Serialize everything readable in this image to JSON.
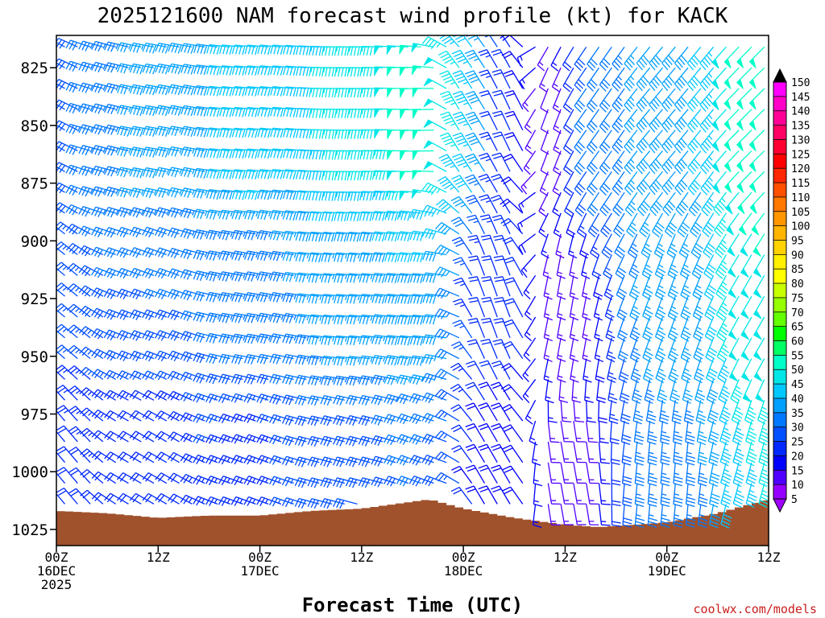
{
  "chart_data": {
    "type": "wind-barb-time-height",
    "title": "2025121600 NAM forecast wind profile (kt) for KACK",
    "xlabel": "Forecast Time (UTC)",
    "ylabel": "",
    "credit": "coolwx.com/models",
    "x_range_hours": [
      0,
      84
    ],
    "y_range_hpa": [
      811,
      1032
    ],
    "x_ticks": [
      {
        "hour": 0,
        "lines": [
          "00Z",
          "16DEC",
          "2025"
        ]
      },
      {
        "hour": 12,
        "lines": [
          "12Z"
        ]
      },
      {
        "hour": 24,
        "lines": [
          "00Z",
          "17DEC"
        ]
      },
      {
        "hour": 36,
        "lines": [
          "12Z"
        ]
      },
      {
        "hour": 48,
        "lines": [
          "00Z",
          "18DEC"
        ]
      },
      {
        "hour": 60,
        "lines": [
          "12Z"
        ]
      },
      {
        "hour": 72,
        "lines": [
          "00Z",
          "19DEC"
        ]
      },
      {
        "hour": 84,
        "lines": [
          "12Z"
        ]
      }
    ],
    "y_ticks": [
      "825",
      "850",
      "875",
      "900",
      "925",
      "950",
      "975",
      "1000",
      "1025"
    ],
    "colorbar": {
      "labels": [
        "150",
        "145",
        "140",
        "135",
        "130",
        "125",
        "120",
        "115",
        "110",
        "105",
        "100",
        "95",
        "90",
        "85",
        "80",
        "75",
        "70",
        "65",
        "60",
        "55",
        "50",
        "45",
        "40",
        "35",
        "30",
        "25",
        "20",
        "15",
        "10",
        "5"
      ],
      "colors": [
        "#ff00ff",
        "#ff00c8",
        "#ff0096",
        "#ff0064",
        "#ff0032",
        "#ff0000",
        "#ff2800",
        "#ff5000",
        "#ff7800",
        "#ff9600",
        "#ffb400",
        "#ffd200",
        "#fff000",
        "#ffff00",
        "#c8ff00",
        "#96ff00",
        "#64ff00",
        "#00ff00",
        "#00ff64",
        "#00ffc8",
        "#00e6e6",
        "#00c8ff",
        "#00a0ff",
        "#0078ff",
        "#0050ff",
        "#0028ff",
        "#0000ff",
        "#5000ff",
        "#9600ff"
      ]
    },
    "surface_pressure_hpa": [
      {
        "hour": 0,
        "p": 1017
      },
      {
        "hour": 6,
        "p": 1018
      },
      {
        "hour": 12,
        "p": 1020
      },
      {
        "hour": 18,
        "p": 1019
      },
      {
        "hour": 24,
        "p": 1019
      },
      {
        "hour": 30,
        "p": 1017
      },
      {
        "hour": 36,
        "p": 1016
      },
      {
        "hour": 40,
        "p": 1014
      },
      {
        "hour": 44,
        "p": 1012
      },
      {
        "hour": 48,
        "p": 1016
      },
      {
        "hour": 54,
        "p": 1020
      },
      {
        "hour": 60,
        "p": 1023
      },
      {
        "hour": 64,
        "p": 1024
      },
      {
        "hour": 72,
        "p": 1022
      },
      {
        "hour": 78,
        "p": 1018
      },
      {
        "hour": 84,
        "p": 1012
      }
    ],
    "wind_samples": [
      {
        "hour": 0,
        "p": 850,
        "dir_deg": 300,
        "speed_kt": 28
      },
      {
        "hour": 6,
        "p": 850,
        "dir_deg": 285,
        "speed_kt": 33
      },
      {
        "hour": 12,
        "p": 850,
        "dir_deg": 280,
        "speed_kt": 38
      },
      {
        "hour": 24,
        "p": 850,
        "dir_deg": 275,
        "speed_kt": 42
      },
      {
        "hour": 36,
        "p": 850,
        "dir_deg": 270,
        "speed_kt": 46
      },
      {
        "hour": 44,
        "p": 850,
        "dir_deg": 268,
        "speed_kt": 52
      },
      {
        "hour": 48,
        "p": 850,
        "dir_deg": 330,
        "speed_kt": 45
      },
      {
        "hour": 54,
        "p": 850,
        "dir_deg": 335,
        "speed_kt": 20
      },
      {
        "hour": 58,
        "p": 850,
        "dir_deg": 200,
        "speed_kt": 12
      },
      {
        "hour": 64,
        "p": 850,
        "dir_deg": 215,
        "speed_kt": 32
      },
      {
        "hour": 72,
        "p": 850,
        "dir_deg": 220,
        "speed_kt": 40
      },
      {
        "hour": 84,
        "p": 850,
        "dir_deg": 225,
        "speed_kt": 52
      },
      {
        "hour": 0,
        "p": 925,
        "dir_deg": 310,
        "speed_kt": 26
      },
      {
        "hour": 12,
        "p": 925,
        "dir_deg": 290,
        "speed_kt": 30
      },
      {
        "hour": 24,
        "p": 925,
        "dir_deg": 280,
        "speed_kt": 33
      },
      {
        "hour": 36,
        "p": 925,
        "dir_deg": 275,
        "speed_kt": 37
      },
      {
        "hour": 44,
        "p": 925,
        "dir_deg": 275,
        "speed_kt": 40
      },
      {
        "hour": 52,
        "p": 925,
        "dir_deg": 340,
        "speed_kt": 22
      },
      {
        "hour": 60,
        "p": 925,
        "dir_deg": 190,
        "speed_kt": 14
      },
      {
        "hour": 72,
        "p": 925,
        "dir_deg": 200,
        "speed_kt": 36
      },
      {
        "hour": 84,
        "p": 925,
        "dir_deg": 210,
        "speed_kt": 50
      },
      {
        "hour": 0,
        "p": 1000,
        "dir_deg": 320,
        "speed_kt": 22
      },
      {
        "hour": 12,
        "p": 1000,
        "dir_deg": 300,
        "speed_kt": 20
      },
      {
        "hour": 24,
        "p": 1000,
        "dir_deg": 290,
        "speed_kt": 24
      },
      {
        "hour": 36,
        "p": 1000,
        "dir_deg": 285,
        "speed_kt": 28
      },
      {
        "hour": 44,
        "p": 1000,
        "dir_deg": 290,
        "speed_kt": 30
      },
      {
        "hour": 52,
        "p": 1000,
        "dir_deg": 330,
        "speed_kt": 18
      },
      {
        "hour": 60,
        "p": 1000,
        "dir_deg": 170,
        "speed_kt": 14
      },
      {
        "hour": 72,
        "p": 1000,
        "dir_deg": 185,
        "speed_kt": 34
      },
      {
        "hour": 84,
        "p": 1000,
        "dir_deg": 195,
        "speed_kt": 45
      }
    ]
  }
}
